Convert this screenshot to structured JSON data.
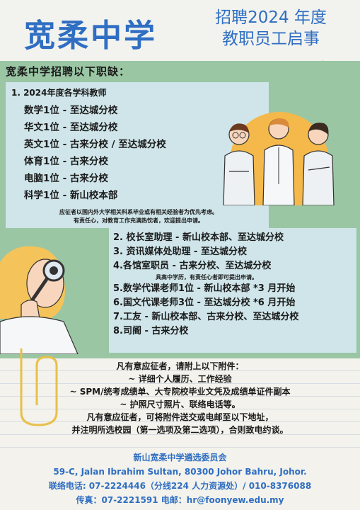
{
  "header": {
    "school_name": "宽柔中学",
    "title_line1": "招聘2024 年度",
    "title_line2": "教职员工启事"
  },
  "section": {
    "heading": "宽柔中学招聘以下职缺："
  },
  "teachers": {
    "heading": "1. 2024年度各学科教师",
    "items": [
      "数学1位 - 至达城分校",
      "华文1位 - 至达城分校",
      "英文1位 - 古来分校 / 至达城分校",
      "体育1位 - 古来分校",
      "电脑1位 - 古来分校",
      "科学1位 - 新山校本部"
    ],
    "note_line1": "应征者以国内外大学相关科系毕业或有相关经验者为优先考虑。",
    "note_line2": "有责任心，对教育工作充满热忱者，欢迎提出申请。"
  },
  "other_positions": {
    "items": [
      "2. 校长室助理 - 新山校本部、至达城分校",
      "3. 资讯媒体处助理 - 至达城分校",
      "4.各馆室职员 - 古来分校、至达城分校",
      "5.数学代课老师1位 - 新山校本部 *3 月开始",
      "6.国文代课老师3位 - 至达城分校 *6 月开始",
      "7.工友 - 新山校本部、古来分校、至达城分校",
      "8.司阍 - 古来分校"
    ],
    "note_item4": "具高中学历，有责任心者即可提出申请。"
  },
  "attachments": {
    "intro": "凡有意应征者，请附上以下附件：",
    "line1": "~ 详细个人履历、工作经验",
    "line2": "~ SPM/统考成绩单、大专院校毕业文凭及成绩单证件副本",
    "line3": "~ 护照尺寸照片、联络电话等。",
    "closing1": "凡有意应征者，可将附件送交或电邮至以下地址，",
    "closing2": "并注明所选校园（第一选项及第二选项），合则致电约谈。"
  },
  "contact": {
    "committee": "新山宽柔中学遴选委员会",
    "address": "59-C, Jalan Ibrahim Sultan, 80300 Johor Bahru, Johor.",
    "phone": "联络电话: 07-2224446（分线224 人力资源处）/ 010-8376088",
    "fax_email": "传真：07-2221591 电邮：hr@foonyew.edu.my"
  },
  "colors": {
    "brand_blue": "#2f6ec2",
    "band_green": "#9ac6a4",
    "panel_blue": "#cfe5ea"
  }
}
